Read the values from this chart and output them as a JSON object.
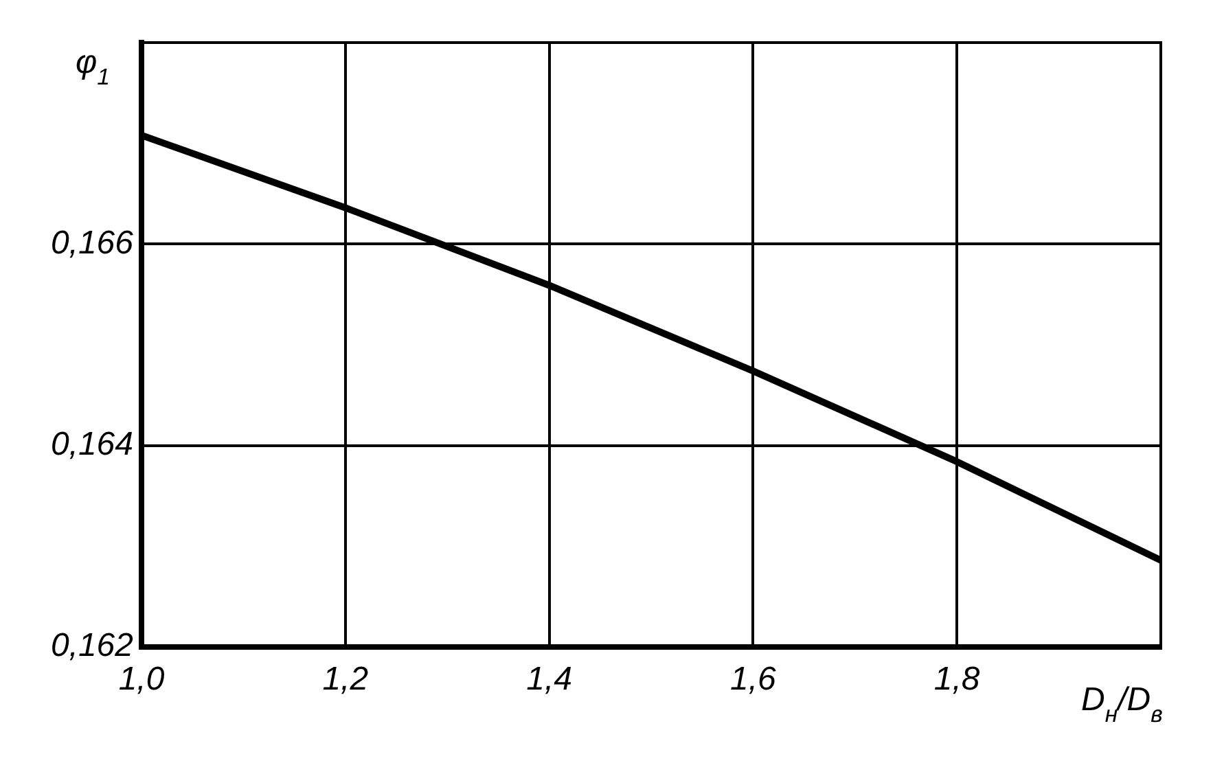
{
  "chart_data": {
    "type": "line",
    "xlabel": "D$_{н}$/D$_{в}$",
    "ylabel": "φ$_{1}$",
    "x": [
      1.0,
      1.2,
      1.4,
      1.6,
      1.8,
      2.0
    ],
    "series": [
      {
        "color": "#000000",
        "values": [
          0.16708,
          0.16636,
          0.16559,
          0.16474,
          0.16384,
          0.16286
        ]
      }
    ],
    "xlim": [
      1.0,
      2.0
    ],
    "xticks": [
      {
        "value": 1.0,
        "label": "1,0"
      },
      {
        "value": 1.2,
        "label": "1,2"
      },
      {
        "value": 1.4,
        "label": "1,4"
      },
      {
        "value": 1.6,
        "label": "1,6"
      },
      {
        "value": 1.8,
        "label": "1,8"
      },
      {
        "value": 2.0,
        "label": null
      }
    ],
    "ylim": [
      0.162,
      0.168
    ],
    "yticks": [
      {
        "value": 0.162,
        "label": "0,162"
      },
      {
        "value": 0.164,
        "label": "0,164"
      },
      {
        "value": 0.166,
        "label": "0,166"
      },
      {
        "value": 0.168,
        "label": null
      }
    ],
    "grid": true,
    "legend": false,
    "marker": "none",
    "line_style": "solid"
  }
}
